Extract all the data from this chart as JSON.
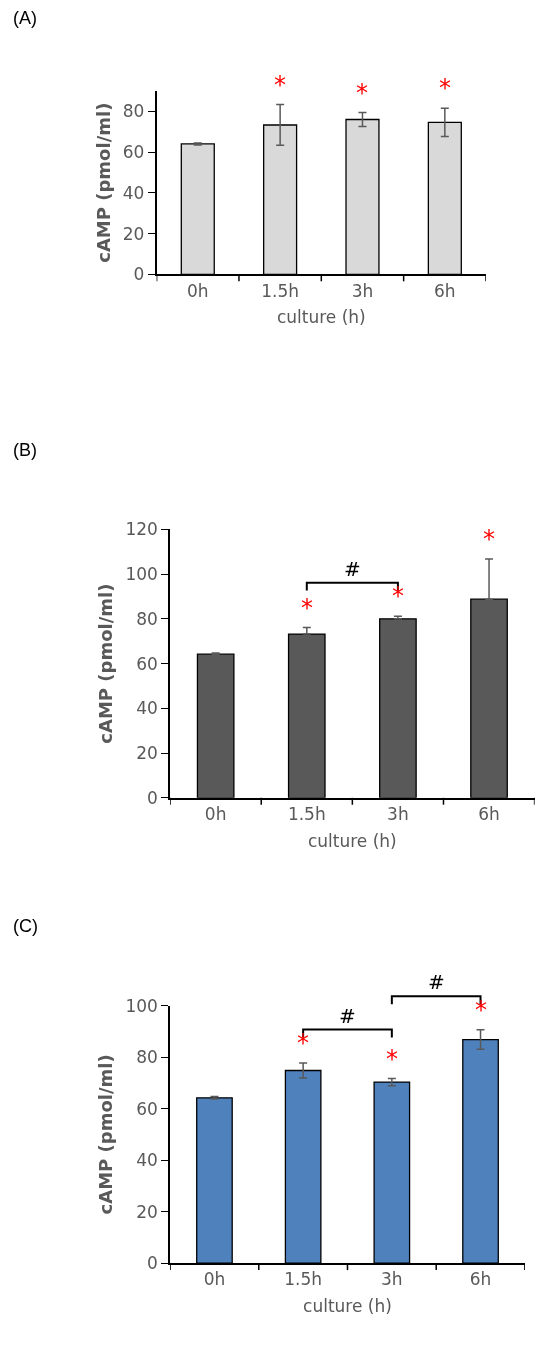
{
  "chart_data": [
    {
      "type": "bar",
      "title": "(A)",
      "xlabel": "culture (h)",
      "ylabel": "cAMP (pmol/ml)",
      "categories": [
        "0h",
        "1.5h",
        "3h",
        "6h"
      ],
      "values": [
        64,
        73.3,
        76,
        74.6
      ],
      "color": "#d9d9d9",
      "errors": [
        0.5,
        10,
        3.4,
        6.9
      ],
      "ylim": [
        0,
        90
      ],
      "yticks": [
        0,
        20,
        40,
        60,
        80
      ],
      "annotations": [
        "*",
        "*",
        "*"
      ]
    },
    {
      "type": "bar",
      "title": "(B)",
      "xlabel": "culture (h)",
      "ylabel": "cAMP (pmol/ml)",
      "categories": [
        "0h",
        "1.5h",
        "3h",
        "6h"
      ],
      "values": [
        64.2,
        73.2,
        80,
        88.8
      ],
      "color": "#595959",
      "errors": [
        [
          64.2,
          64.7
        ],
        [
          73.2,
          76.1
        ],
        [
          80,
          81.2
        ],
        [
          88.8,
          106.7
        ]
      ],
      "ylim": [
        0,
        120
      ],
      "yticks": [
        0,
        20,
        40,
        60,
        80,
        100,
        120
      ],
      "annotations": [
        "*",
        "*",
        "*",
        "#"
      ]
    },
    {
      "type": "bar",
      "title": "(C)",
      "xlabel": "culture (h)",
      "ylabel": "cAMP (pmol/ml)",
      "categories": [
        "0h",
        "1.5h",
        "3h",
        "6h"
      ],
      "values": [
        64.2,
        74.8,
        70.3,
        86.8
      ],
      "color": "#4f81bd",
      "errors": [
        0.5,
        2.9,
        1.4,
        3.8
      ],
      "ylim": [
        0,
        100
      ],
      "yticks": [
        0,
        20,
        40,
        60,
        80,
        100
      ],
      "annotations": [
        "*",
        "*",
        "*",
        "#",
        "#"
      ]
    }
  ]
}
